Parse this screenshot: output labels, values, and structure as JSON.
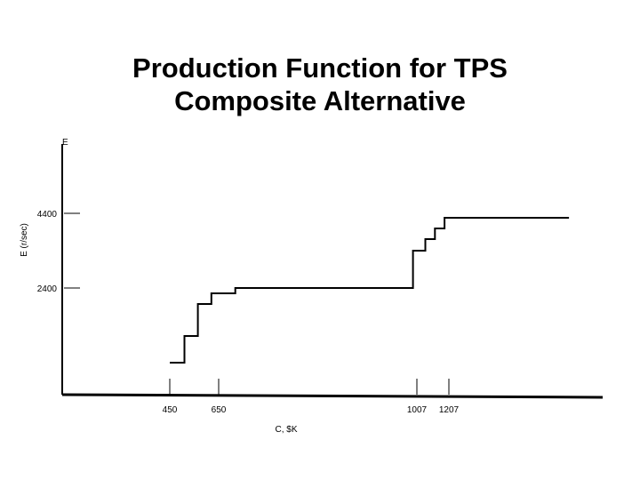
{
  "chart_data": {
    "type": "line",
    "title": [
      "Production Function for TPS",
      "Composite Alternative"
    ],
    "y_axis_top_label": "E",
    "ylabel": "E (r/sec)",
    "xlabel": "C, $K",
    "x_ticks": [
      {
        "label": "450",
        "value": 450
      },
      {
        "label": "650",
        "value": 650
      },
      {
        "label": "1007",
        "value": 1007
      },
      {
        "label": "1207",
        "value": 1207
      }
    ],
    "y_ticks": [
      {
        "label": "4400",
        "value": 4400
      },
      {
        "label": "2400",
        "value": 2400
      }
    ],
    "xlim": [
      0,
      1850
    ],
    "ylim": [
      0,
      4650
    ],
    "series": [
      {
        "step_points": [
          [
            450,
            900
          ],
          [
            510,
            900
          ],
          [
            510,
            1600
          ],
          [
            565,
            1600
          ],
          [
            565,
            2400
          ],
          [
            620,
            2400
          ],
          [
            620,
            2650
          ],
          [
            680,
            2650
          ],
          [
            680,
            2780
          ],
          [
            1000,
            2780
          ],
          [
            1000,
            3750
          ],
          [
            1060,
            3750
          ],
          [
            1060,
            4050
          ],
          [
            1120,
            4050
          ],
          [
            1120,
            4350
          ],
          [
            1180,
            4350
          ],
          [
            1180,
            4620
          ],
          [
            1750,
            4620
          ]
        ]
      }
    ]
  }
}
